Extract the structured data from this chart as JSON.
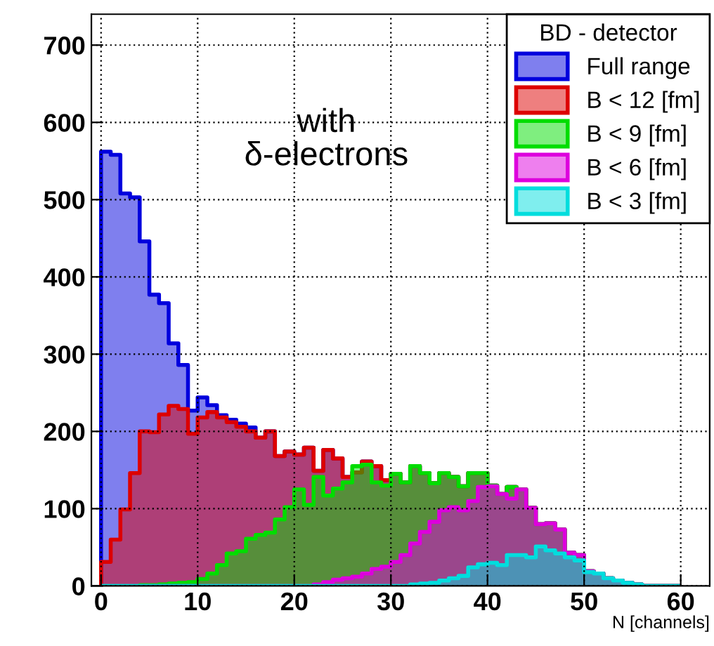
{
  "chart_data": {
    "type": "histogram",
    "legend_title": "BD - detector",
    "xlabel": "N [channels]",
    "annotations": [
      "with\nδ-electrons"
    ],
    "bins": [
      0,
      1,
      2,
      3,
      4,
      5,
      6,
      7,
      8,
      9,
      10,
      11,
      12,
      13,
      14,
      15,
      16,
      17,
      18,
      19,
      20,
      21,
      22,
      23,
      24,
      25,
      26,
      27,
      28,
      29,
      30,
      31,
      32,
      33,
      34,
      35,
      36,
      37,
      38,
      39,
      40,
      41,
      42,
      43,
      44,
      45,
      46,
      47,
      48,
      49,
      50,
      51,
      52,
      53,
      54,
      55,
      56,
      57,
      58,
      59,
      60
    ],
    "series": [
      {
        "name": "Full range",
        "color": "#0000dd",
        "values": [
          562,
          558,
          508,
          503,
          446,
          377,
          366,
          314,
          286,
          227,
          244,
          234,
          221,
          215,
          210,
          205,
          192,
          200,
          168,
          174,
          170,
          179,
          149,
          176,
          165,
          141,
          147,
          161,
          155,
          137,
          145,
          134,
          155,
          146,
          133,
          146,
          141,
          129,
          146,
          146,
          130,
          119,
          128,
          125,
          101,
          80,
          81,
          73,
          43,
          40,
          19,
          16,
          10,
          7,
          4,
          2,
          0,
          0,
          0,
          0
        ]
      },
      {
        "name": "B < 12 [fm]",
        "color": "#dd0000",
        "values": [
          31,
          60,
          99,
          146,
          200,
          199,
          222,
          233,
          229,
          197,
          218,
          225,
          218,
          212,
          206,
          200,
          192,
          200,
          168,
          174,
          170,
          179,
          149,
          176,
          165,
          141,
          147,
          161,
          155,
          137,
          145,
          134,
          155,
          146,
          133,
          146,
          141,
          129,
          146,
          146,
          130,
          119,
          128,
          125,
          101,
          80,
          81,
          73,
          43,
          40,
          19,
          16,
          10,
          7,
          4,
          2,
          0,
          0,
          0,
          0
        ]
      },
      {
        "name": "B < 9 [fm]",
        "color": "#00dd00",
        "values": [
          0,
          0,
          0,
          0,
          1,
          1,
          2,
          3,
          4,
          5,
          9,
          16,
          27,
          42,
          45,
          61,
          66,
          69,
          86,
          102,
          125,
          105,
          141,
          117,
          126,
          134,
          155,
          157,
          134,
          130,
          145,
          134,
          155,
          146,
          133,
          146,
          141,
          129,
          146,
          146,
          130,
          119,
          128,
          125,
          101,
          80,
          81,
          73,
          43,
          40,
          19,
          16,
          10,
          7,
          4,
          2,
          0,
          0,
          0,
          0
        ]
      },
      {
        "name": "B < 6 [fm]",
        "color": "#dd00dd",
        "values": [
          0,
          0,
          0,
          0,
          0,
          0,
          0,
          0,
          0,
          0,
          0,
          0,
          0,
          0,
          0,
          0,
          0,
          0,
          0,
          0,
          0,
          0,
          2,
          5,
          8,
          10,
          12,
          16,
          22,
          25,
          31,
          40,
          55,
          70,
          83,
          98,
          102,
          98,
          110,
          128,
          129,
          119,
          113,
          125,
          101,
          80,
          81,
          73,
          43,
          40,
          19,
          16,
          10,
          7,
          4,
          2,
          0,
          0,
          0,
          0
        ]
      },
      {
        "name": "B < 3 [fm]",
        "color": "#00dddd",
        "values": [
          0,
          0,
          0,
          0,
          0,
          0,
          0,
          0,
          0,
          0,
          0,
          0,
          0,
          0,
          0,
          0,
          0,
          0,
          0,
          0,
          0,
          0,
          0,
          0,
          0,
          0,
          0,
          0,
          0,
          0,
          0,
          0,
          2,
          3,
          4,
          7,
          10,
          13,
          24,
          28,
          30,
          27,
          40,
          40,
          37,
          51,
          46,
          42,
          37,
          33,
          18,
          16,
          10,
          7,
          4,
          2,
          0,
          0,
          0,
          0
        ]
      }
    ],
    "xlim": [
      -1,
      63
    ],
    "xticks": [
      0,
      10,
      20,
      30,
      40,
      50,
      60
    ],
    "ylim": [
      0,
      740
    ],
    "yticks": [
      0,
      100,
      200,
      300,
      400,
      500,
      600,
      700
    ],
    "grid": true,
    "legend": "top right"
  }
}
